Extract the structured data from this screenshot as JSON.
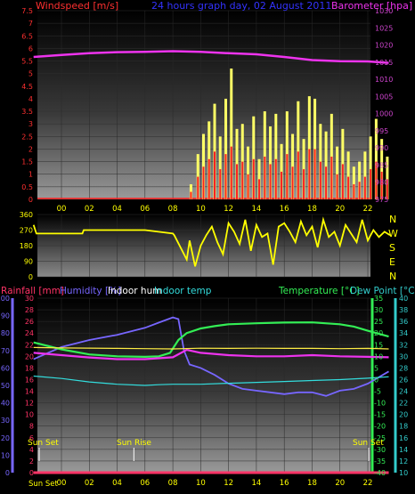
{
  "colors": {
    "wind": "#ff2020",
    "gust": "#ffff66",
    "barometer": "#ee33ee",
    "winddir": "#ffff00",
    "rainfall": "#ff3366",
    "humidity": "#7766ff",
    "indoor_hum": "#ffffff",
    "indoor_temp": "#33dddd",
    "temperature": "#33ee55",
    "dew_point": "#33cccc",
    "sun": "#ffff00",
    "axis_left": "#ff3030",
    "axis_right": "#cc44cc"
  },
  "top_panel": {
    "title_left": "Windspeed [m/s]",
    "title_center": "24 hours graph day, 02 August 2011",
    "title_right": "Barometer [hpa]"
  },
  "dir_panel": {
    "compass": [
      "N",
      "W",
      "S",
      "E",
      "N"
    ]
  },
  "bottom_panel": {
    "label_rain": "Rainfall [mm]",
    "label_humidity": "Humidity [%]",
    "label_indoor_hum": "Indoor hum",
    "label_indoor_temp": "Indoor temp",
    "label_temperature": "Temperature [°C]",
    "label_dewpoint": "Dew Point [°C]",
    "sunset_label_1": "Sun Set",
    "sunrise_label": "Sun Rise",
    "sunset_label_2": "Sun Set",
    "x_start_label": "Sun Set"
  },
  "chart_data": [
    {
      "type": "bar",
      "title": "24 hours graph day, 02 August 2011",
      "ylabel": "Windspeed [m/s]",
      "y2label": "Barometer [hpa]",
      "x_ticks": [
        "00",
        "02",
        "04",
        "06",
        "08",
        "10",
        "12",
        "14",
        "16",
        "18",
        "20",
        "22"
      ],
      "ylim": [
        0,
        7.5
      ],
      "y_ticks": [
        "0",
        "0.5",
        "1",
        "1.5",
        "2",
        "2.5",
        "3",
        "3.5",
        "4",
        "4.5",
        "5",
        "5.5",
        "6",
        "6.5",
        "7",
        "7.5"
      ],
      "y2lim": [
        975,
        1030
      ],
      "y2_ticks": [
        "975",
        "980",
        "985",
        "990",
        "995",
        "1000",
        "1005",
        "1010",
        "1015",
        "1020",
        "1025",
        "1030"
      ],
      "series": [
        {
          "name": "Barometer",
          "x": [
            -2,
            0,
            2,
            4,
            6,
            8,
            10,
            12,
            14,
            16,
            18,
            20,
            22,
            23.5
          ],
          "values": [
            1016.5,
            1017.1,
            1017.6,
            1017.9,
            1018.0,
            1018.2,
            1018.0,
            1017.6,
            1017.3,
            1016.5,
            1015.6,
            1015.3,
            1015.2,
            1014.8
          ]
        },
        {
          "name": "Wind gust",
          "x": [
            9.3,
            9.8,
            10.2,
            10.6,
            11.0,
            11.4,
            11.8,
            12.2,
            12.6,
            13.0,
            13.4,
            13.8,
            14.2,
            14.6,
            15.0,
            15.4,
            15.8,
            16.2,
            16.6,
            17.0,
            17.4,
            17.8,
            18.2,
            18.6,
            19.0,
            19.4,
            19.8,
            20.2,
            20.6,
            21.0,
            21.4,
            21.8,
            22.2,
            22.6,
            23.0,
            23.4
          ],
          "values": [
            0.6,
            1.8,
            2.6,
            3.1,
            3.8,
            2.5,
            4.0,
            5.2,
            2.8,
            3.0,
            2.1,
            3.3,
            1.6,
            3.5,
            2.9,
            3.4,
            2.2,
            3.5,
            2.6,
            3.9,
            2.4,
            4.1,
            4.0,
            3.0,
            2.7,
            3.4,
            2.1,
            2.8,
            1.9,
            1.3,
            1.5,
            1.9,
            2.5,
            3.2,
            2.4,
            1.7
          ]
        },
        {
          "name": "Wind speed",
          "x": [
            9.3,
            9.8,
            10.2,
            10.6,
            11.0,
            11.4,
            11.8,
            12.2,
            12.6,
            13.0,
            13.4,
            13.8,
            14.2,
            14.6,
            15.0,
            15.4,
            15.8,
            16.2,
            16.6,
            17.0,
            17.4,
            17.8,
            18.2,
            18.6,
            19.0,
            19.4,
            19.8,
            20.2,
            20.6,
            21.0,
            21.4,
            21.8,
            22.2,
            22.6,
            23.0,
            23.4
          ],
          "values": [
            0.3,
            0.9,
            1.3,
            1.6,
            1.9,
            1.2,
            1.8,
            2.1,
            1.4,
            1.5,
            1.0,
            1.6,
            0.8,
            1.7,
            1.4,
            1.6,
            1.1,
            1.8,
            1.3,
            1.9,
            1.2,
            2.0,
            2.0,
            1.5,
            1.3,
            1.7,
            1.0,
            1.4,
            0.9,
            0.6,
            0.7,
            0.9,
            1.2,
            1.5,
            1.1,
            0.8
          ]
        }
      ]
    },
    {
      "type": "line",
      "title": "",
      "x_ticks": [
        "00",
        "02",
        "04",
        "06",
        "08",
        "10",
        "12",
        "14",
        "16",
        "18",
        "20",
        "22"
      ],
      "ylim": [
        0,
        360
      ],
      "y_ticks": [
        "0",
        "90",
        "180",
        "270",
        "360"
      ],
      "series": [
        {
          "name": "Wind direction",
          "x": [
            -2,
            -1.8,
            0,
            1.5,
            1.6,
            6.0,
            8.0,
            8.1,
            9.0,
            9.2,
            9.6,
            10.0,
            10.4,
            10.8,
            11.2,
            11.6,
            12.0,
            12.4,
            12.8,
            13.2,
            13.6,
            14.0,
            14.4,
            14.8,
            15.2,
            15.6,
            16.0,
            16.4,
            16.8,
            17.2,
            17.6,
            18.0,
            18.4,
            18.8,
            19.2,
            19.6,
            20.0,
            20.4,
            20.8,
            21.2,
            21.6,
            22.0,
            22.4,
            22.8,
            23.2,
            23.6
          ],
          "values": [
            300,
            250,
            250,
            250,
            270,
            270,
            250,
            240,
            100,
            210,
            60,
            180,
            240,
            290,
            200,
            130,
            310,
            260,
            190,
            330,
            150,
            300,
            230,
            250,
            70,
            290,
            310,
            260,
            200,
            320,
            240,
            290,
            170,
            330,
            230,
            260,
            180,
            300,
            250,
            200,
            330,
            210,
            270,
            230,
            260,
            240
          ]
        }
      ]
    },
    {
      "type": "line",
      "title": "",
      "x_ticks": [
        "Sun Set",
        "00",
        "02",
        "04",
        "06",
        "08",
        "10",
        "12",
        "14",
        "16",
        "18",
        "20",
        "22"
      ],
      "ylim_rain": [
        0,
        100
      ],
      "y_rain_ticks": [
        "0",
        "10",
        "20",
        "30",
        "40",
        "50",
        "60",
        "70",
        "80",
        "90",
        "100"
      ],
      "ylim_temp": [
        -40,
        35
      ],
      "y_temp_ticks": [
        "-40",
        "-35",
        "-30",
        "-25",
        "-20",
        "-15",
        "-10",
        "-5",
        "0",
        "5",
        "10",
        "15",
        "20",
        "25",
        "30",
        "35"
      ],
      "y_hum_ticks": [
        "0",
        "2",
        "4",
        "6",
        "8",
        "10",
        "12",
        "14",
        "16",
        "18",
        "20",
        "22",
        "24",
        "26",
        "28",
        "30"
      ],
      "y_dew_ticks": [
        "10",
        "12",
        "14",
        "16",
        "18",
        "20",
        "22",
        "24",
        "26",
        "28",
        "30",
        "32",
        "34",
        "36",
        "38",
        "40"
      ],
      "series": [
        {
          "name": "Humidity",
          "x": [
            -2,
            0,
            2,
            4,
            6,
            7,
            8,
            8.4,
            8.8,
            9.2,
            10,
            11,
            12,
            13,
            14,
            15,
            16,
            17,
            18,
            19,
            20,
            21,
            22,
            23.5
          ],
          "values": [
            65,
            72,
            76,
            79,
            83,
            86,
            89,
            88,
            70,
            62,
            60,
            56,
            51,
            48,
            47,
            46,
            45,
            46,
            46,
            44,
            47,
            48,
            51,
            58
          ]
        },
        {
          "name": "Temperature",
          "x": [
            -2,
            0,
            2,
            4,
            6,
            7,
            7.8,
            8.4,
            9,
            10,
            11,
            12,
            14,
            16,
            18,
            20,
            21,
            22,
            23.5
          ],
          "values": [
            16.0,
            13.0,
            10.8,
            10.0,
            9.8,
            10.0,
            11.5,
            17.0,
            20.0,
            22.0,
            23.0,
            23.8,
            24.2,
            24.5,
            24.6,
            23.8,
            22.8,
            21.0,
            18.5
          ]
        },
        {
          "name": "Dew Point",
          "x": [
            -2,
            0,
            2,
            4,
            6,
            8,
            9,
            10,
            12,
            14,
            16,
            18,
            20,
            22,
            23.5
          ],
          "values": [
            11.5,
            10.5,
            9.5,
            8.8,
            8.8,
            9.6,
            12.8,
            11.5,
            10.5,
            10.0,
            10.0,
            10.5,
            10.0,
            9.8,
            9.6
          ]
        },
        {
          "name": "Indoor temp",
          "x": [
            -2,
            0,
            2,
            4,
            6,
            7,
            8,
            10,
            12,
            14,
            16,
            18,
            20,
            22,
            23.5
          ],
          "values": [
            1.5,
            0.5,
            -1.0,
            -2.0,
            -2.5,
            -2.2,
            -2.0,
            -2.0,
            -1.6,
            -1.2,
            -0.8,
            -0.4,
            0.0,
            0.6,
            1.2
          ]
        },
        {
          "name": "Indoor hum",
          "x": [
            -2,
            0,
            4,
            6,
            8,
            10,
            12,
            14,
            16,
            18,
            20,
            22,
            23.5
          ],
          "values": [
            13.8,
            13.6,
            13.4,
            13.3,
            13.2,
            13.5,
            13.4,
            13.5,
            13.4,
            13.4,
            13.3,
            13.4,
            13.2
          ]
        },
        {
          "name": "Rainfall",
          "x": [
            -2,
            23.5
          ],
          "values": [
            0,
            0
          ]
        }
      ],
      "events": [
        {
          "label": "Sun Set",
          "x": -2
        },
        {
          "label": "Sun Rise",
          "x": 5.2
        },
        {
          "label": "Sun Set",
          "x": 23.3
        }
      ]
    }
  ]
}
